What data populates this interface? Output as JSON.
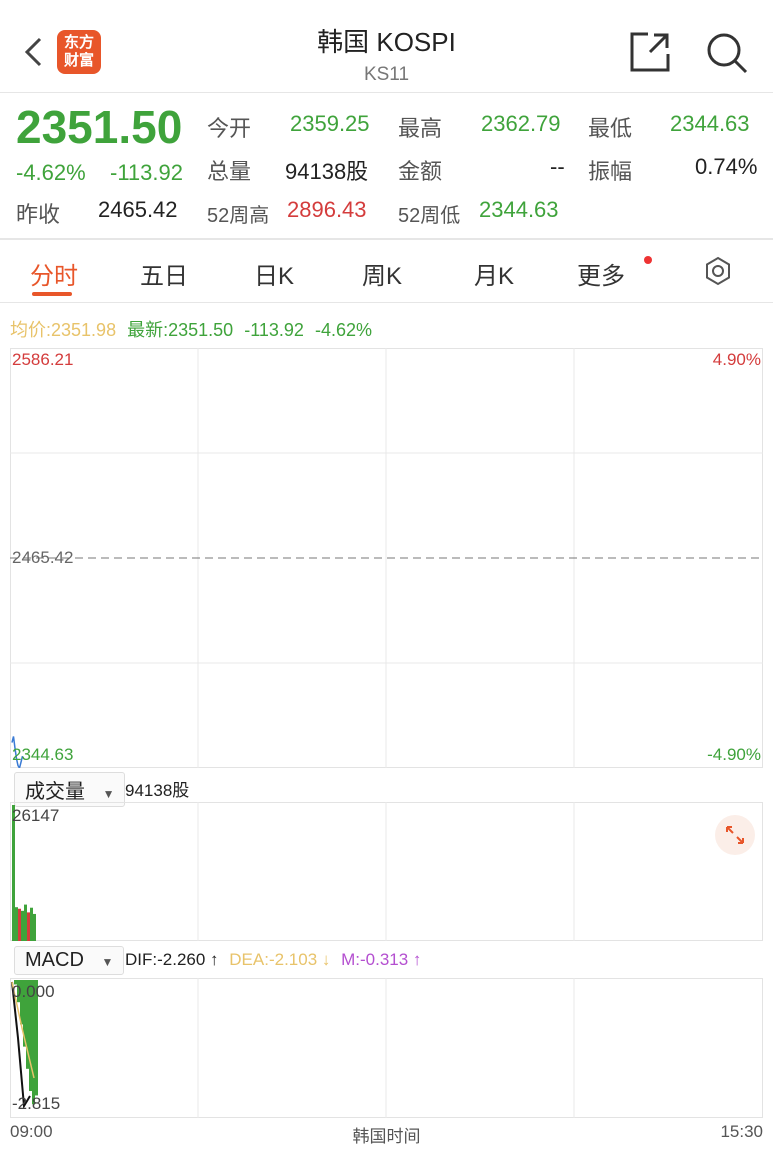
{
  "header": {
    "title": "韩国 KOSPI",
    "code": "KS11",
    "logo_text": "东方财富"
  },
  "quote": {
    "price": "2351.50",
    "change_pct": "-4.62%",
    "change": "-113.92",
    "open_label": "今开",
    "open": "2359.25",
    "high_label": "最高",
    "high": "2362.79",
    "low_label": "最低",
    "low": "2344.63",
    "volume_label": "总量",
    "volume": "94138股",
    "amount_label": "金额",
    "amount": "--",
    "amplitude_label": "振幅",
    "amplitude": "0.74%",
    "prev_close_label": "昨收",
    "prev_close": "2465.42",
    "w52_high_label": "52周高",
    "w52_high": "2896.43",
    "w52_low_label": "52周低",
    "w52_low": "2344.63"
  },
  "tabs": [
    {
      "label": "分时",
      "active": true
    },
    {
      "label": "五日"
    },
    {
      "label": "日K"
    },
    {
      "label": "周K"
    },
    {
      "label": "月K"
    },
    {
      "label": "更多"
    }
  ],
  "info": {
    "avg_label": "均价:",
    "avg": "2351.98",
    "latest_label": "最新:",
    "latest": "2351.50",
    "change": "-113.92",
    "pct": "-4.62%"
  },
  "price_chart": {
    "top": "2586.21",
    "mid": "2465.42",
    "bottom": "2344.63",
    "top_pct": "4.90%",
    "bottom_pct": "-4.90%"
  },
  "volume": {
    "selector": "成交量",
    "total": "94138股",
    "max": "26147"
  },
  "macd": {
    "selector": "MACD",
    "dif": "DIF:-2.260 ↑",
    "dea": "DEA:-2.103 ↓",
    "m": "M:-0.313 ↑",
    "top": "0.000",
    "bottom": "-2.815"
  },
  "time_axis": {
    "start": "09:00",
    "label": "韩国时间",
    "end": "15:30"
  },
  "colors": {
    "up": "#d43c3c",
    "down": "#3fa33b",
    "accent": "#e8562a",
    "avg": "#e8c36a",
    "macd_m": "#b44fd0"
  },
  "chart_data": {
    "type": "line",
    "price": [
      2359.25,
      2362.79,
      2356,
      2350,
      2346,
      2344.63,
      2348,
      2351.5
    ],
    "ylim": [
      2344.63,
      2586.21
    ],
    "volume": [
      26147,
      6500,
      6200,
      5800,
      7000,
      5500,
      6400,
      5200
    ],
    "macd_hist": [
      -0.1,
      -0.5,
      -1.0,
      -1.5,
      -2.0,
      -2.5,
      -2.8,
      -2.6
    ]
  }
}
